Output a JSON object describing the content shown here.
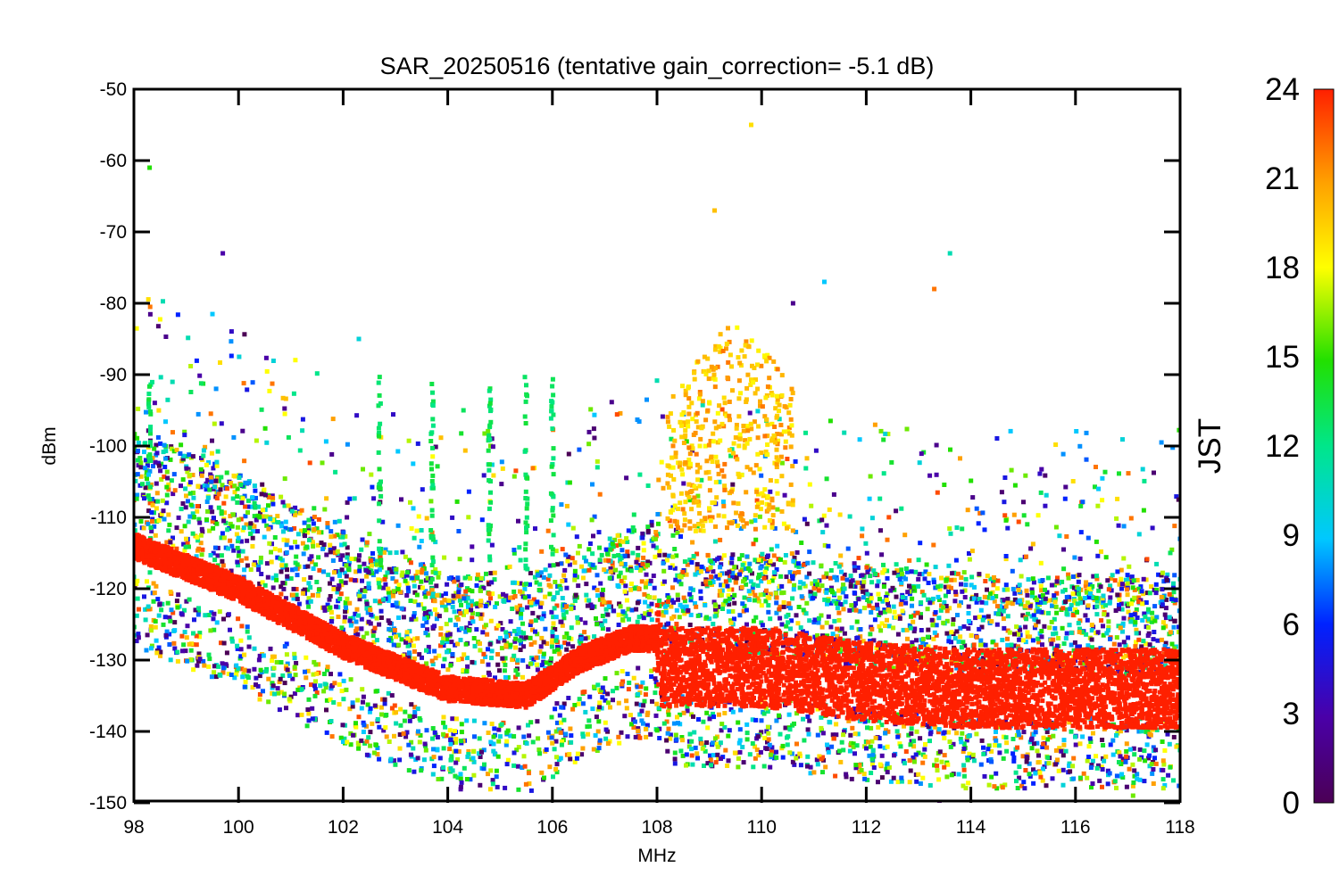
{
  "chart_data": {
    "type": "scatter",
    "title": "SAR_20250516 (tentative gain_correction= -5.1 dB)",
    "xlabel": "MHz",
    "ylabel": "dBm",
    "xlim": [
      98,
      118
    ],
    "ylim": [
      -150,
      -50
    ],
    "x_ticks": [
      "98",
      "100",
      "102",
      "104",
      "106",
      "108",
      "110",
      "112",
      "114",
      "116",
      "118"
    ],
    "y_ticks": [
      "-50",
      "-60",
      "-70",
      "-80",
      "-90",
      "-100",
      "-110",
      "-120",
      "-130",
      "-140",
      "-150"
    ],
    "colorbar": {
      "label": "JST",
      "range": [
        0,
        24
      ],
      "ticks": [
        "0",
        "3",
        "6",
        "9",
        "12",
        "15",
        "18",
        "21",
        "24"
      ],
      "colormap": "rainbow (purple to red)"
    },
    "grid": false,
    "noise_floor_JST_24": [
      {
        "x": 98,
        "y": -114
      },
      {
        "x": 100,
        "y": -120
      },
      {
        "x": 102,
        "y": -128
      },
      {
        "x": 104,
        "y": -134
      },
      {
        "x": 105.5,
        "y": -135
      },
      {
        "x": 106.5,
        "y": -130
      },
      {
        "x": 107.5,
        "y": -127
      },
      {
        "x": 108,
        "y": -127
      },
      {
        "x": 108.1,
        "y": -131
      },
      {
        "x": 110,
        "y": -131
      },
      {
        "x": 112,
        "y": -133
      },
      {
        "x": 114,
        "y": -134
      },
      {
        "x": 116,
        "y": -134
      },
      {
        "x": 118,
        "y": -134
      }
    ],
    "notable_points": [
      {
        "x": 109.8,
        "y": -55,
        "jst": 19
      },
      {
        "x": 109.1,
        "y": -67,
        "jst": 20
      },
      {
        "x": 98.3,
        "y": -61,
        "jst": 15
      },
      {
        "x": 99.7,
        "y": -73,
        "jst": 3
      },
      {
        "x": 113.6,
        "y": -73,
        "jst": 11
      },
      {
        "x": 111.2,
        "y": -77,
        "jst": 9
      },
      {
        "x": 110.6,
        "y": -80,
        "jst": 2
      },
      {
        "x": 113.3,
        "y": -78,
        "jst": 22
      },
      {
        "x": 102.3,
        "y": -85,
        "jst": 10
      },
      {
        "x": 104.3,
        "y": -95,
        "jst": 13
      },
      {
        "x": 113.4,
        "y": -150,
        "jst": 1
      },
      {
        "x": 117.1,
        "y": -149,
        "jst": 16
      }
    ]
  }
}
